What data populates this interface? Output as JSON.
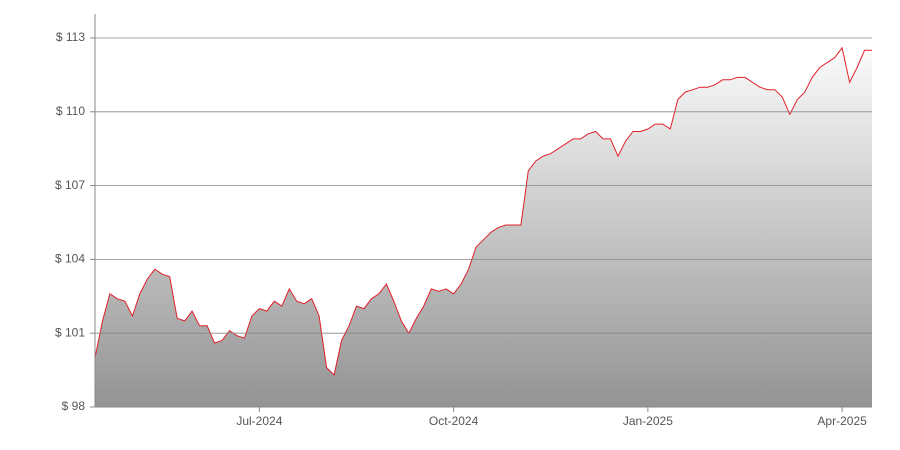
{
  "chart_data": {
    "type": "area",
    "categories": [
      null,
      null,
      null,
      null,
      null,
      null,
      null,
      null,
      null,
      null,
      null,
      null,
      null,
      null,
      null,
      null,
      null,
      null,
      null,
      null,
      null,
      null,
      "Jul-2024",
      null,
      null,
      null,
      null,
      null,
      null,
      null,
      null,
      null,
      null,
      null,
      null,
      null,
      null,
      null,
      null,
      null,
      null,
      null,
      null,
      null,
      null,
      null,
      null,
      null,
      "Oct-2024",
      null,
      null,
      null,
      null,
      null,
      null,
      null,
      null,
      null,
      null,
      null,
      null,
      null,
      null,
      null,
      null,
      null,
      null,
      null,
      null,
      null,
      null,
      null,
      null,
      null,
      "Jan-2025",
      null,
      null,
      null,
      null,
      null,
      null,
      null,
      null,
      null,
      null,
      null,
      null,
      null,
      null,
      null,
      null,
      null,
      null,
      null,
      null,
      null,
      null,
      null,
      null,
      null,
      "Apr-2025",
      null,
      null,
      null,
      null
    ],
    "series": [
      {
        "color": "#e0202a",
        "values": [
          100.0,
          101.5,
          102.6,
          102.4,
          102.3,
          101.7,
          102.6,
          103.2,
          103.6,
          103.4,
          103.3,
          101.6,
          101.5,
          101.9,
          101.3,
          101.3,
          100.6,
          100.7,
          101.1,
          100.9,
          100.8,
          101.7,
          102.0,
          101.9,
          102.3,
          102.1,
          102.8,
          102.3,
          102.2,
          102.4,
          101.7,
          99.6,
          99.3,
          100.7,
          101.3,
          102.1,
          102.0,
          102.4,
          102.6,
          103.0,
          102.3,
          101.5,
          101.0,
          101.6,
          102.1,
          102.8,
          102.7,
          102.8,
          102.6,
          103.0,
          103.6,
          104.5,
          104.8,
          105.1,
          105.3,
          105.4,
          105.4,
          105.4,
          107.6,
          108.0,
          108.2,
          108.3,
          108.5,
          108.7,
          108.9,
          108.9,
          109.1,
          109.2,
          108.9,
          108.9,
          108.2,
          108.8,
          109.2,
          109.2,
          109.3,
          109.5,
          109.5,
          109.3,
          110.5,
          110.8,
          110.9,
          111.0,
          111.0,
          111.1,
          111.3,
          111.3,
          111.4,
          111.4,
          111.2,
          111.0,
          110.9,
          110.9,
          110.6,
          109.9,
          110.5,
          110.8,
          111.4,
          111.8,
          112.0,
          112.2,
          112.6,
          111.2,
          111.8,
          112.5,
          112.5
        ]
      }
    ],
    "ylim": [
      98,
      113
    ],
    "yticks": [
      {
        "value": 98,
        "label": "$ 98"
      },
      {
        "value": 101,
        "label": "$ 101"
      },
      {
        "value": 104,
        "label": "$ 104"
      },
      {
        "value": 107,
        "label": "$ 107"
      },
      {
        "value": 110,
        "label": "$ 110"
      },
      {
        "value": 113,
        "label": "$ 113"
      }
    ],
    "grid": true
  }
}
